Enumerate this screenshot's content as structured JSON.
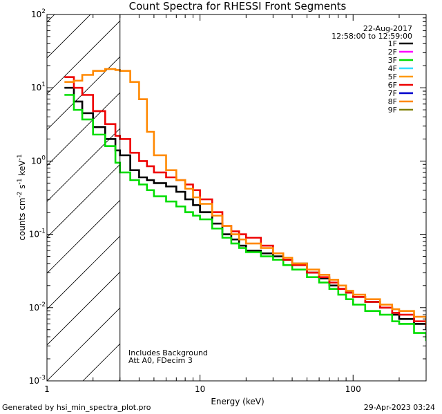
{
  "chart_data": {
    "type": "line",
    "title": "Count Spectra for RHESSI Front Segments",
    "xlabel": "Energy (keV)",
    "ylabel_parts": [
      "counts cm",
      "-2",
      " s",
      "-1",
      " keV",
      "-1"
    ],
    "xscale": "log",
    "yscale": "log",
    "xlim": [
      1,
      300
    ],
    "ylim": [
      0.001,
      100
    ],
    "x_tick_labels": [
      {
        "value": 1,
        "label": "1"
      },
      {
        "value": 10,
        "label": "10"
      },
      {
        "value": 100,
        "label": "100"
      }
    ],
    "y_tick_labels": [
      {
        "value": 0.001,
        "mant": "10",
        "exp": "-3"
      },
      {
        "value": 0.01,
        "mant": "10",
        "exp": "-2"
      },
      {
        "value": 0.1,
        "mant": "10",
        "exp": "-1"
      },
      {
        "value": 1,
        "mant": "10",
        "exp": "0"
      },
      {
        "value": 10,
        "mant": "10",
        "exp": "1"
      },
      {
        "value": 100,
        "mant": "10",
        "exp": "2"
      }
    ],
    "attenuator_cutoff_kev": 3,
    "date": "22-Aug-2017",
    "time_range": "12:58:00 to 12:59:00",
    "annotations": [
      "Includes Background",
      "Att A0, FDecim 3"
    ],
    "legend": [
      {
        "label": "1F",
        "color": "#000000"
      },
      {
        "label": "2F",
        "color": "#ff00ff"
      },
      {
        "label": "3F",
        "color": "#00dd00"
      },
      {
        "label": "4F",
        "color": "#33ddff"
      },
      {
        "label": "5F",
        "color": "#ff9900"
      },
      {
        "label": "6F",
        "color": "#ee0000"
      },
      {
        "label": "7F",
        "color": "#0000cc"
      },
      {
        "label": "8F",
        "color": "#ff8800"
      },
      {
        "label": "9F",
        "color": "#808000"
      }
    ],
    "series": [
      {
        "name": "1F",
        "color": "#000000",
        "x": [
          1.3,
          1.5,
          1.7,
          2.0,
          2.4,
          2.8,
          3.0,
          3.5,
          4.0,
          4.5,
          5.0,
          6.0,
          7.0,
          8.0,
          9.0,
          10,
          12,
          14,
          16,
          18,
          20,
          25,
          30,
          35,
          40,
          50,
          60,
          70,
          80,
          90,
          100,
          120,
          150,
          180,
          200,
          250,
          300
        ],
        "y": [
          10,
          6.5,
          4.5,
          2.9,
          2.0,
          1.4,
          1.2,
          0.75,
          0.6,
          0.55,
          0.5,
          0.45,
          0.38,
          0.3,
          0.25,
          0.2,
          0.14,
          0.1,
          0.085,
          0.07,
          0.06,
          0.055,
          0.05,
          0.045,
          0.04,
          0.03,
          0.025,
          0.02,
          0.018,
          0.016,
          0.014,
          0.012,
          0.01,
          0.008,
          0.007,
          0.006,
          0.005
        ]
      },
      {
        "name": "3F",
        "color": "#00dd00",
        "x": [
          1.3,
          1.5,
          1.7,
          2.0,
          2.4,
          2.8,
          3.0,
          3.5,
          4.0,
          4.5,
          5.0,
          6.0,
          7.0,
          8.0,
          9.0,
          10,
          12,
          14,
          16,
          18,
          20,
          25,
          30,
          35,
          40,
          50,
          60,
          70,
          80,
          90,
          100,
          120,
          150,
          180,
          200,
          250,
          300
        ],
        "y": [
          8,
          5.0,
          3.7,
          2.3,
          1.6,
          0.95,
          0.7,
          0.55,
          0.48,
          0.4,
          0.33,
          0.28,
          0.24,
          0.2,
          0.18,
          0.16,
          0.12,
          0.09,
          0.075,
          0.065,
          0.057,
          0.05,
          0.045,
          0.038,
          0.033,
          0.026,
          0.022,
          0.018,
          0.015,
          0.013,
          0.011,
          0.009,
          0.008,
          0.0065,
          0.006,
          0.0045,
          0.0035
        ]
      },
      {
        "name": "6F",
        "color": "#ee0000",
        "x": [
          1.3,
          1.5,
          1.7,
          2.0,
          2.4,
          2.8,
          3.0,
          3.5,
          4.0,
          4.5,
          5.0,
          6.0,
          7.0,
          8.0,
          9.0,
          10,
          12,
          14,
          16,
          18,
          20,
          25,
          30,
          35,
          40,
          50,
          60,
          70,
          80,
          90,
          100,
          120,
          150,
          180,
          200,
          250,
          300
        ],
        "y": [
          14,
          10,
          8,
          4.8,
          3.2,
          2.2,
          2.0,
          1.3,
          1.0,
          0.85,
          0.7,
          0.6,
          0.55,
          0.48,
          0.4,
          0.3,
          0.2,
          0.13,
          0.11,
          0.1,
          0.09,
          0.07,
          0.055,
          0.045,
          0.038,
          0.03,
          0.026,
          0.022,
          0.018,
          0.016,
          0.014,
          0.012,
          0.01,
          0.0085,
          0.008,
          0.0065,
          0.0055
        ]
      },
      {
        "name": "8F",
        "color": "#ff8800",
        "x": [
          1.3,
          1.5,
          1.7,
          2.0,
          2.4,
          2.8,
          3.0,
          3.5,
          4.0,
          4.5,
          5.0,
          6.0,
          7.0,
          8.0,
          9.0,
          10,
          12,
          14,
          16,
          18,
          20,
          25,
          30,
          35,
          40,
          50,
          60,
          70,
          80,
          90,
          100,
          120,
          150,
          180,
          200,
          250,
          300
        ],
        "y": [
          12,
          12.5,
          15,
          17,
          18,
          17.5,
          17,
          12,
          7,
          2.5,
          1.2,
          0.75,
          0.55,
          0.42,
          0.32,
          0.26,
          0.18,
          0.13,
          0.1,
          0.085,
          0.075,
          0.065,
          0.055,
          0.048,
          0.04,
          0.033,
          0.028,
          0.024,
          0.02,
          0.017,
          0.015,
          0.013,
          0.011,
          0.0095,
          0.009,
          0.0075,
          0.006
        ]
      }
    ]
  },
  "footer": {
    "generated_by": "Generated by hsi_min_spectra_plot.pro",
    "timestamp": "29-Apr-2023 03:24"
  }
}
